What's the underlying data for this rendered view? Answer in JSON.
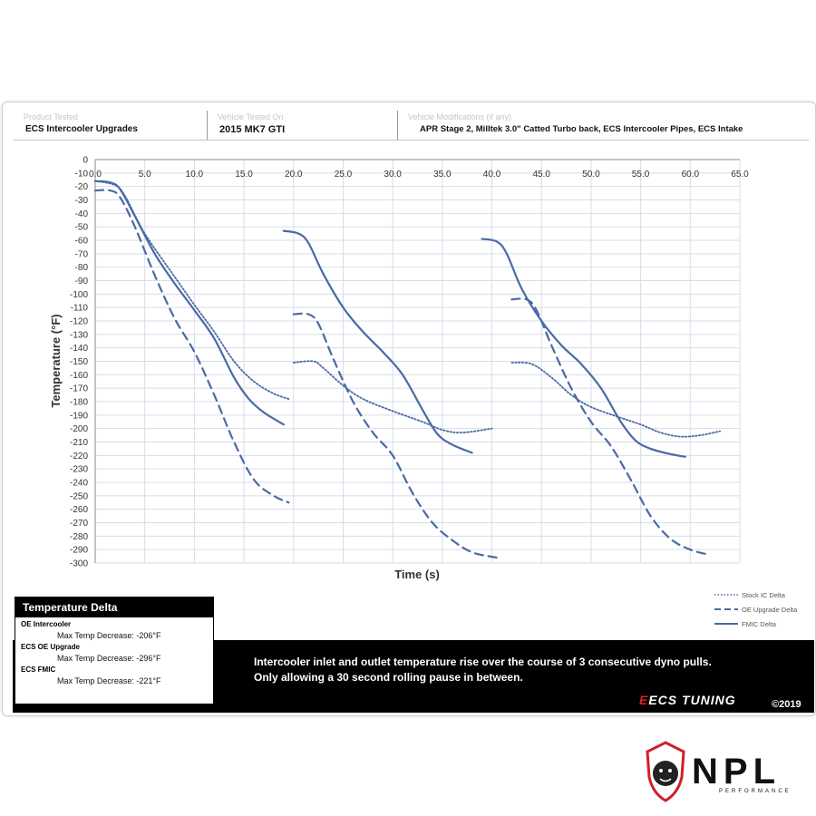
{
  "header": {
    "product_label": "Product Tested",
    "product_value": "ECS Intercooler Upgrades",
    "vehicle_label": "Vehicle Tested On",
    "vehicle_value": "2015  MK7 GTI",
    "mods_label": "Vehicle Modifications (if any)",
    "mods_value": "APR Stage 2, Milltek 3.0\" Catted Turbo back, ECS Intercooler Pipes, ECS Intake"
  },
  "temperature_delta": {
    "title": "Temperature Delta",
    "groups": [
      {
        "name": "OE Intercooler",
        "text": "Max Temp Decrease: -206°F"
      },
      {
        "name": "ECS OE Upgrade",
        "text": "Max Temp Decrease: -296°F"
      },
      {
        "name": "ECS FMIC",
        "text": "Max Temp Decrease: -221°F"
      }
    ]
  },
  "footer": {
    "line1": "Intercooler inlet and outlet temperature rise over the course of 3 consecutive dyno pulls.",
    "line2": "Only allowing a 30 second rolling pause in between.",
    "brand": "ECS TUNING",
    "copyright": "©2019"
  },
  "watermark": {
    "brand": "NPL",
    "sub": "PERFORMANCE"
  },
  "colors": {
    "series": "#4a6aa5",
    "grid": "#d6dde8"
  },
  "chart_data": {
    "type": "line",
    "title": "",
    "xlabel": "Time (s)",
    "ylabel": "Temperature (°F)",
    "xlim": [
      0,
      65
    ],
    "ylim": [
      -300,
      0
    ],
    "x_ticks": [
      "0.0",
      "5.0",
      "10.0",
      "15.0",
      "20.0",
      "25.0",
      "30.0",
      "35.0",
      "40.0",
      "45.0",
      "50.0",
      "55.0",
      "60.0",
      "65.0"
    ],
    "y_ticks": [
      "0",
      "-10",
      "-20",
      "-30",
      "-40",
      "-50",
      "-60",
      "-70",
      "-80",
      "-90",
      "-100",
      "-110",
      "-120",
      "-130",
      "-140",
      "-150",
      "-160",
      "-170",
      "-180",
      "-190",
      "-200",
      "-210",
      "-220",
      "-230",
      "-240",
      "-250",
      "-260",
      "-270",
      "-280",
      "-290",
      "-300"
    ],
    "grid": true,
    "legend_position": "bottom-right",
    "series": [
      {
        "name": "Stock IC Delta",
        "style": "dotted",
        "segments": [
          [
            [
              0,
              -16
            ],
            [
              2,
              -19
            ],
            [
              3,
              -27
            ],
            [
              5,
              -55
            ],
            [
              8,
              -87
            ],
            [
              10,
              -108
            ],
            [
              12,
              -128
            ],
            [
              14,
              -150
            ],
            [
              16,
              -165
            ],
            [
              18,
              -174
            ],
            [
              19.5,
              -178
            ]
          ],
          [
            [
              20,
              -151
            ],
            [
              22,
              -150
            ],
            [
              23,
              -155
            ],
            [
              25,
              -168
            ],
            [
              27,
              -178
            ],
            [
              30,
              -187
            ],
            [
              33,
              -195
            ],
            [
              35,
              -201
            ],
            [
              37,
              -203
            ],
            [
              40,
              -200
            ]
          ],
          [
            [
              42,
              -151
            ],
            [
              44,
              -152
            ],
            [
              46,
              -162
            ],
            [
              48,
              -175
            ],
            [
              50,
              -184
            ],
            [
              53,
              -192
            ],
            [
              55,
              -197
            ],
            [
              57,
              -203
            ],
            [
              59,
              -206
            ],
            [
              61,
              -205
            ],
            [
              63,
              -202
            ]
          ]
        ]
      },
      {
        "name": "OE Upgrade Delta",
        "style": "dashed",
        "segments": [
          [
            [
              0,
              -23
            ],
            [
              1.5,
              -23
            ],
            [
              2.5,
              -28
            ],
            [
              4,
              -50
            ],
            [
              6,
              -86
            ],
            [
              8,
              -118
            ],
            [
              10,
              -143
            ],
            [
              12,
              -175
            ],
            [
              14,
              -210
            ],
            [
              16,
              -238
            ],
            [
              18,
              -250
            ],
            [
              19.5,
              -255
            ]
          ],
          [
            [
              20,
              -115
            ],
            [
              21.5,
              -115
            ],
            [
              22.5,
              -122
            ],
            [
              24,
              -148
            ],
            [
              26,
              -180
            ],
            [
              28,
              -203
            ],
            [
              30,
              -220
            ],
            [
              32,
              -248
            ],
            [
              34,
              -270
            ],
            [
              36,
              -283
            ],
            [
              38,
              -292
            ],
            [
              40.5,
              -296
            ]
          ],
          [
            [
              42,
              -104
            ],
            [
              43.5,
              -104
            ],
            [
              44.5,
              -112
            ],
            [
              46,
              -138
            ],
            [
              48,
              -170
            ],
            [
              50,
              -195
            ],
            [
              52,
              -213
            ],
            [
              54,
              -238
            ],
            [
              56,
              -265
            ],
            [
              58,
              -282
            ],
            [
              60,
              -290
            ],
            [
              62,
              -294
            ]
          ]
        ]
      },
      {
        "name": "FMIC Delta",
        "style": "solid",
        "segments": [
          [
            [
              0,
              -16
            ],
            [
              1.5,
              -17
            ],
            [
              2.5,
              -22
            ],
            [
              4,
              -42
            ],
            [
              6,
              -70
            ],
            [
              8,
              -92
            ],
            [
              10,
              -112
            ],
            [
              12,
              -133
            ],
            [
              14,
              -162
            ],
            [
              15.5,
              -178
            ],
            [
              17,
              -188
            ],
            [
              19,
              -197
            ]
          ],
          [
            [
              19,
              -53
            ],
            [
              20.5,
              -55
            ],
            [
              21.5,
              -62
            ],
            [
              23,
              -85
            ],
            [
              25,
              -110
            ],
            [
              27,
              -128
            ],
            [
              29,
              -143
            ],
            [
              31,
              -160
            ],
            [
              33,
              -186
            ],
            [
              34.5,
              -204
            ],
            [
              36,
              -212
            ],
            [
              38,
              -218
            ]
          ],
          [
            [
              39,
              -59
            ],
            [
              40.5,
              -61
            ],
            [
              41.5,
              -70
            ],
            [
              43,
              -96
            ],
            [
              45,
              -120
            ],
            [
              47,
              -138
            ],
            [
              49,
              -152
            ],
            [
              51,
              -170
            ],
            [
              53,
              -195
            ],
            [
              54.5,
              -209
            ],
            [
              56,
              -215
            ],
            [
              58,
              -219
            ],
            [
              59.5,
              -221
            ]
          ]
        ]
      }
    ]
  }
}
